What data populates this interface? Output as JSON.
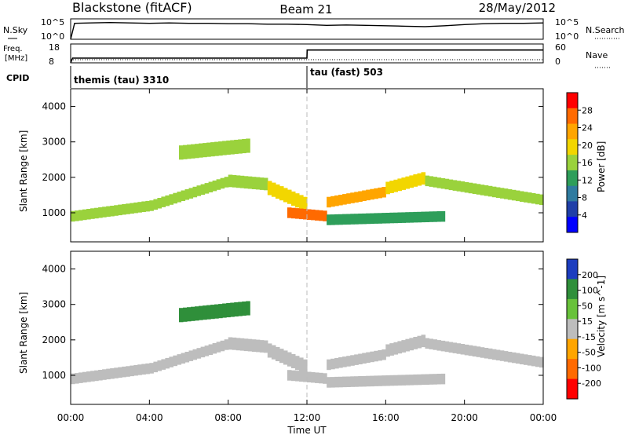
{
  "header": {
    "station": "Blackstone (fitACF)",
    "beam": "Beam 21",
    "date": "28/May/2012"
  },
  "top_panels": {
    "nsky_label": "N.Sky",
    "nsky_ticks": [
      "10^5",
      "10^0"
    ],
    "nsearch_label": "N.Search",
    "nsearch_ticks": [
      "10^5",
      "10^0"
    ],
    "freq_label_line1": "Freq.",
    "freq_label_line2": "[MHz]",
    "freq_ticks": [
      "18",
      "8"
    ],
    "nave_label": "Nave",
    "nave_ticks": [
      "60",
      "0"
    ],
    "cpid_label": "CPID",
    "cpid_segments": [
      {
        "label": "themis (tau) 3310",
        "start_hour": 0,
        "end_hour": 12
      },
      {
        "label": "tau (fast) 503",
        "start_hour": 12,
        "end_hour": 24
      }
    ]
  },
  "x_axis": {
    "title": "Time UT",
    "ticks": [
      "00:00",
      "04:00",
      "08:00",
      "12:00",
      "16:00",
      "20:00",
      "00:00"
    ]
  },
  "power_colorbar": {
    "title": "Power [dB]",
    "ticks": [
      "28",
      "24",
      "20",
      "16",
      "12",
      "8",
      "4"
    ],
    "colors": [
      "#ff0000",
      "#ff6a00",
      "#ffa500",
      "#f2d600",
      "#9ad23c",
      "#2e9e5a",
      "#2f7ba0",
      "#1f3fa8",
      "#0000ff"
    ]
  },
  "velocity_colorbar": {
    "title": "Velocity [m s^-1]",
    "ticks": [
      "200",
      "100",
      "50",
      "15",
      "-15",
      "-50",
      "-100",
      "-200"
    ],
    "colors": [
      "#1c3dbf",
      "#2f8f3a",
      "#68c23a",
      "#bdbdbd",
      "#ffa500",
      "#ff6a00",
      "#ff0000"
    ]
  },
  "chart_data": [
    {
      "type": "line",
      "name": "N.Sky",
      "x_hours": [
        0,
        0.2,
        1,
        2,
        3,
        4,
        5,
        6,
        7,
        8,
        9,
        10,
        11,
        12,
        13,
        14,
        15,
        16,
        17,
        18,
        19,
        20,
        21,
        22,
        23,
        24
      ],
      "log10_values": [
        0,
        3.9,
        4.0,
        4.1,
        4.0,
        3.9,
        4.0,
        3.9,
        3.9,
        3.8,
        3.8,
        3.7,
        3.7,
        3.6,
        3.4,
        3.5,
        3.4,
        3.3,
        3.2,
        3.1,
        3.3,
        3.6,
        3.8,
        3.9,
        3.9,
        4.0
      ],
      "ylim": [
        0,
        5
      ]
    },
    {
      "type": "line",
      "name": "Freq.",
      "ylabel": "[MHz]",
      "x_hours": [
        0,
        0.1,
        12,
        12.01,
        24
      ],
      "values": [
        8,
        10.5,
        10.5,
        14.8,
        14.8
      ],
      "ylim": [
        8,
        18
      ]
    },
    {
      "type": "heatmap",
      "name": "Power",
      "xlabel": "Time UT",
      "ylabel": "Slant Range [km]",
      "xlim_hours": [
        0,
        24
      ],
      "ylim_km": [
        180,
        4500
      ],
      "yticks": [
        1000,
        2000,
        3000,
        4000
      ],
      "colorbar": "Power [dB]",
      "color_range_db": [
        0,
        32
      ],
      "echo_bands": [
        {
          "start_hour": 0.0,
          "end_hour": 4.0,
          "center_km_start": 900,
          "center_km_end": 1200,
          "width_km": 300,
          "power_db": 16
        },
        {
          "start_hour": 4.0,
          "end_hour": 8.0,
          "center_km_start": 1200,
          "center_km_end": 1900,
          "width_km": 300,
          "power_db": 18
        },
        {
          "start_hour": 8.0,
          "end_hour": 10.0,
          "center_km_start": 1900,
          "center_km_end": 1800,
          "width_km": 350,
          "power_db": 16
        },
        {
          "start_hour": 10.0,
          "end_hour": 12.0,
          "center_km_start": 1700,
          "center_km_end": 1200,
          "width_km": 400,
          "power_db": 20
        },
        {
          "start_hour": 11.0,
          "end_hour": 13.0,
          "center_km_start": 1000,
          "center_km_end": 900,
          "width_km": 300,
          "power_db": 28
        },
        {
          "start_hour": 13.0,
          "end_hour": 16.0,
          "center_km_start": 1300,
          "center_km_end": 1600,
          "width_km": 300,
          "power_db": 26
        },
        {
          "start_hour": 16.0,
          "end_hour": 18.0,
          "center_km_start": 1700,
          "center_km_end": 2000,
          "width_km": 350,
          "power_db": 20
        },
        {
          "start_hour": 18.0,
          "end_hour": 24.0,
          "center_km_start": 1900,
          "center_km_end": 1350,
          "width_km": 300,
          "power_db": 16
        },
        {
          "start_hour": 5.5,
          "end_hour": 9.0,
          "center_km_start": 2700,
          "center_km_end": 2900,
          "width_km": 400,
          "power_db": 17
        },
        {
          "start_hour": 13.0,
          "end_hour": 19.0,
          "center_km_start": 800,
          "center_km_end": 900,
          "width_km": 300,
          "power_db": 12
        }
      ]
    },
    {
      "type": "heatmap",
      "name": "Velocity",
      "xlabel": "Time UT",
      "ylabel": "Slant Range [km]",
      "xlim_hours": [
        0,
        24
      ],
      "ylim_km": [
        180,
        4500
      ],
      "yticks": [
        1000,
        2000,
        3000,
        4000
      ],
      "colorbar": "Velocity [m s^-1]",
      "color_range_ms": [
        -250,
        250
      ],
      "echo_bands": [
        {
          "start_hour": 0.0,
          "end_hour": 4.0,
          "center_km_start": 900,
          "center_km_end": 1200,
          "width_km": 300,
          "velocity_ms": 0
        },
        {
          "start_hour": 4.0,
          "end_hour": 8.0,
          "center_km_start": 1200,
          "center_km_end": 1900,
          "width_km": 300,
          "velocity_ms": 0
        },
        {
          "start_hour": 8.0,
          "end_hour": 10.0,
          "center_km_start": 1900,
          "center_km_end": 1800,
          "width_km": 350,
          "velocity_ms": 0
        },
        {
          "start_hour": 10.0,
          "end_hour": 12.0,
          "center_km_start": 1700,
          "center_km_end": 1200,
          "width_km": 400,
          "velocity_ms": 0
        },
        {
          "start_hour": 11.0,
          "end_hour": 13.0,
          "center_km_start": 1000,
          "center_km_end": 900,
          "width_km": 300,
          "velocity_ms": 0
        },
        {
          "start_hour": 13.0,
          "end_hour": 16.0,
          "center_km_start": 1300,
          "center_km_end": 1600,
          "width_km": 300,
          "velocity_ms": 0
        },
        {
          "start_hour": 16.0,
          "end_hour": 18.0,
          "center_km_start": 1700,
          "center_km_end": 2000,
          "width_km": 350,
          "velocity_ms": 0
        },
        {
          "start_hour": 18.0,
          "end_hour": 24.0,
          "center_km_start": 1900,
          "center_km_end": 1350,
          "width_km": 300,
          "velocity_ms": 0
        },
        {
          "start_hour": 5.5,
          "end_hour": 9.0,
          "center_km_start": 2700,
          "center_km_end": 2900,
          "width_km": 400,
          "velocity_ms": 120
        },
        {
          "start_hour": 13.0,
          "end_hour": 19.0,
          "center_km_start": 800,
          "center_km_end": 900,
          "width_km": 300,
          "velocity_ms": 0
        }
      ]
    }
  ]
}
